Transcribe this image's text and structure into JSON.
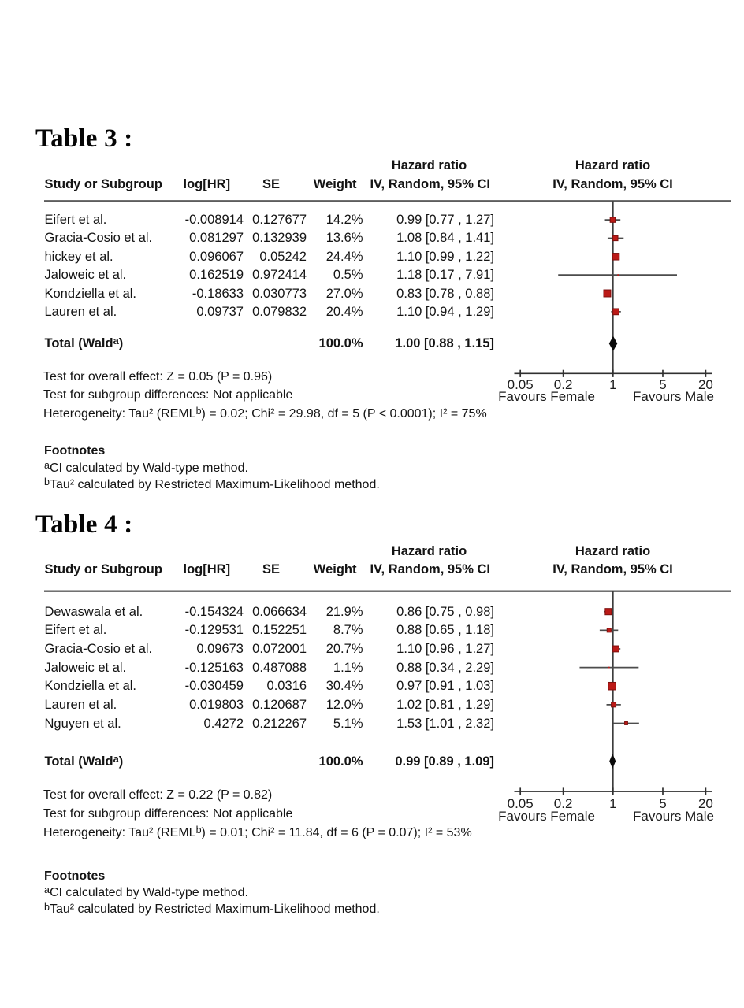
{
  "page": {
    "background": "#ffffff",
    "text_color": "#141414"
  },
  "chart_data": [
    {
      "type": "forest",
      "title": "Table 3 :",
      "columns": {
        "study": "Study or Subgroup",
        "loghr": "log[HR]",
        "se": "SE",
        "weight": "Weight",
        "effect_top": "Hazard ratio",
        "effect": "IV, Random, 95% CI",
        "plot_top": "Hazard ratio",
        "plot": "IV, Random, 95% CI"
      },
      "studies": [
        {
          "name": "Eifert et al.",
          "loghr": "-0.008914",
          "se": "0.127677",
          "weight": "14.2%",
          "weight_value": 14.2,
          "ci_text": "0.99 [0.77 , 1.27]",
          "hr": 0.99,
          "ci_low": 0.77,
          "ci_high": 1.27
        },
        {
          "name": "Gracia-Cosio et al.",
          "loghr": "0.081297",
          "se": "0.132939",
          "weight": "13.6%",
          "weight_value": 13.6,
          "ci_text": "1.08 [0.84 , 1.41]",
          "hr": 1.08,
          "ci_low": 0.84,
          "ci_high": 1.41
        },
        {
          "name": "hickey et al.",
          "loghr": "0.096067",
          "se": "0.05242",
          "weight": "24.4%",
          "weight_value": 24.4,
          "ci_text": "1.10 [0.99 , 1.22]",
          "hr": 1.1,
          "ci_low": 0.99,
          "ci_high": 1.22
        },
        {
          "name": "Jaloweic et al.",
          "loghr": "0.162519",
          "se": "0.972414",
          "weight": "0.5%",
          "weight_value": 0.5,
          "ci_text": "1.18 [0.17 , 7.91]",
          "hr": 1.18,
          "ci_low": 0.17,
          "ci_high": 7.91
        },
        {
          "name": "Kondziella et al.",
          "loghr": "-0.18633",
          "se": "0.030773",
          "weight": "27.0%",
          "weight_value": 27.0,
          "ci_text": "0.83 [0.78 , 0.88]",
          "hr": 0.83,
          "ci_low": 0.78,
          "ci_high": 0.88
        },
        {
          "name": "Lauren et al.",
          "loghr": "0.09737",
          "se": "0.079832",
          "weight": "20.4%",
          "weight_value": 20.4,
          "ci_text": "1.10 [0.94 , 1.29]",
          "hr": 1.1,
          "ci_low": 0.94,
          "ci_high": 1.29
        }
      ],
      "total": {
        "label": "Total (Wald",
        "label_sup": "a",
        "label_end": ")",
        "weight": "100.0%",
        "ci_text": "1.00 [0.88 , 1.15]",
        "hr": 1.0,
        "ci_low": 0.88,
        "ci_high": 1.15
      },
      "tests": {
        "overall": "Test for overall effect: Z = 0.05 (P = 0.96)",
        "subgroup": "Test for subgroup differences: Not applicable",
        "heterogeneity_prefix": "Heterogeneity: Tau² (REML",
        "heterogeneity_sup": "b",
        "heterogeneity_suffix": ") = 0.02; Chi² = 29.98, df = 5 (P < 0.0001); I² = 75%"
      },
      "axis": {
        "scale": "log",
        "ticks": [
          "0.05",
          "0.2",
          "1",
          "5",
          "20"
        ],
        "tick_values": [
          0.05,
          0.2,
          1,
          5,
          20
        ],
        "xlim": [
          0.04,
          25
        ],
        "left_label": "Favours Female",
        "right_label": "Favours Male"
      },
      "footnotes": {
        "header": "Footnotes",
        "items": [
          {
            "sup": "a",
            "text": "CI calculated by Wald-type method."
          },
          {
            "sup": "b",
            "text": "Tau² calculated by Restricted Maximum-Likelihood method."
          }
        ]
      },
      "marker_color": "#bb1a17",
      "marker_border": "#7e100e",
      "diamond_color": "#0a0a0a"
    },
    {
      "type": "forest",
      "title": "Table 4 :",
      "columns": {
        "study": "Study or Subgroup",
        "loghr": "log[HR]",
        "se": "SE",
        "weight": "Weight",
        "effect_top": "Hazard ratio",
        "effect": "IV, Random, 95% CI",
        "plot_top": "Hazard ratio",
        "plot": "IV, Random, 95% CI"
      },
      "studies": [
        {
          "name": "Dewaswala et al.",
          "loghr": "-0.154324",
          "se": "0.066634",
          "weight": "21.9%",
          "weight_value": 21.9,
          "ci_text": "0.86 [0.75 , 0.98]",
          "hr": 0.86,
          "ci_low": 0.75,
          "ci_high": 0.98
        },
        {
          "name": "Eifert et al.",
          "loghr": "-0.129531",
          "se": "0.152251",
          "weight": "8.7%",
          "weight_value": 8.7,
          "ci_text": "0.88 [0.65 , 1.18]",
          "hr": 0.88,
          "ci_low": 0.65,
          "ci_high": 1.18
        },
        {
          "name": "Gracia-Cosio et al.",
          "loghr": "0.09673",
          "se": "0.072001",
          "weight": "20.7%",
          "weight_value": 20.7,
          "ci_text": "1.10 [0.96 , 1.27]",
          "hr": 1.1,
          "ci_low": 0.96,
          "ci_high": 1.27
        },
        {
          "name": "Jaloweic et al.",
          "loghr": "-0.125163",
          "se": "0.487088",
          "weight": "1.1%",
          "weight_value": 1.1,
          "ci_text": "0.88 [0.34 , 2.29]",
          "hr": 0.88,
          "ci_low": 0.34,
          "ci_high": 2.29
        },
        {
          "name": "Kondziella et al.",
          "loghr": "-0.030459",
          "se": "0.0316",
          "weight": "30.4%",
          "weight_value": 30.4,
          "ci_text": "0.97 [0.91 , 1.03]",
          "hr": 0.97,
          "ci_low": 0.91,
          "ci_high": 1.03
        },
        {
          "name": "Lauren et al.",
          "loghr": "0.019803",
          "se": "0.120687",
          "weight": "12.0%",
          "weight_value": 12.0,
          "ci_text": "1.02 [0.81 , 1.29]",
          "hr": 1.02,
          "ci_low": 0.81,
          "ci_high": 1.29
        },
        {
          "name": "Nguyen et al.",
          "loghr": "0.4272",
          "se": "0.212267",
          "weight": "5.1%",
          "weight_value": 5.1,
          "ci_text": "1.53 [1.01 , 2.32]",
          "hr": 1.53,
          "ci_low": 1.01,
          "ci_high": 2.32
        }
      ],
      "total": {
        "label": "Total (Wald",
        "label_sup": "a",
        "label_end": ")",
        "weight": "100.0%",
        "ci_text": "0.99 [0.89 , 1.09]",
        "hr": 0.99,
        "ci_low": 0.89,
        "ci_high": 1.09
      },
      "tests": {
        "overall": "Test for overall effect: Z = 0.22 (P = 0.82)",
        "subgroup": "Test for subgroup differences: Not applicable",
        "heterogeneity_prefix": "Heterogeneity: Tau² (REML",
        "heterogeneity_sup": "b",
        "heterogeneity_suffix": ") = 0.01; Chi² = 11.84, df = 6 (P = 0.07); I² = 53%"
      },
      "axis": {
        "scale": "log",
        "ticks": [
          "0.05",
          "0.2",
          "1",
          "5",
          "20"
        ],
        "tick_values": [
          0.05,
          0.2,
          1,
          5,
          20
        ],
        "xlim": [
          0.04,
          25
        ],
        "left_label": "Favours Female",
        "right_label": "Favours Male"
      },
      "footnotes": {
        "header": "Footnotes",
        "items": [
          {
            "sup": "a",
            "text": "CI calculated by Wald-type method."
          },
          {
            "sup": "b",
            "text": "Tau² calculated by Restricted Maximum-Likelihood method."
          }
        ]
      },
      "marker_color": "#bb1a17",
      "marker_border": "#7e100e",
      "diamond_color": "#0a0a0a"
    }
  ]
}
